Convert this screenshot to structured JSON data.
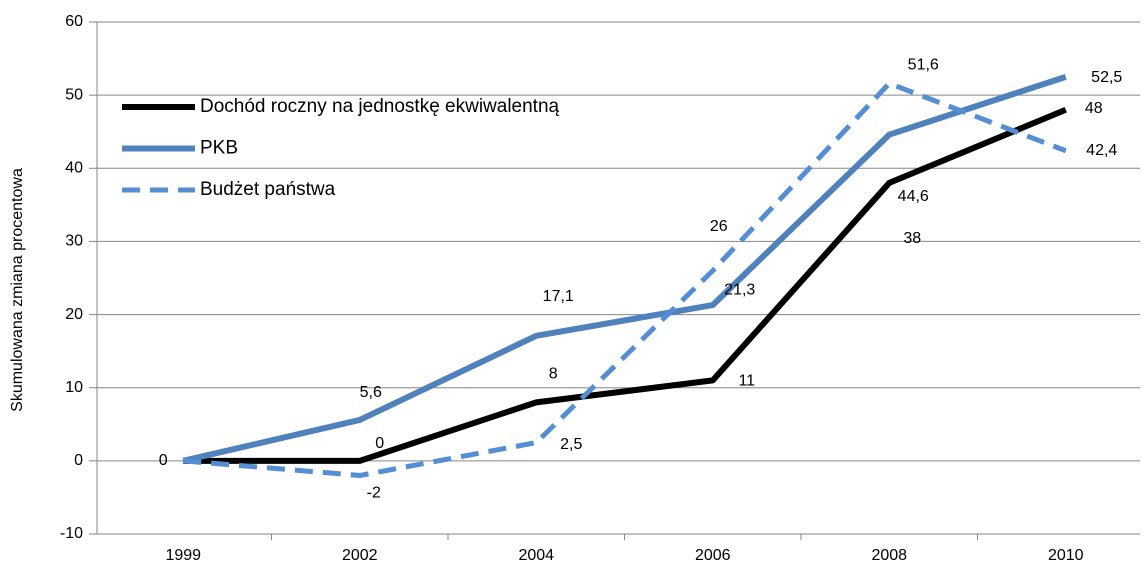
{
  "chart_data": {
    "type": "line",
    "y_label": "Skumulowana zmiana procentowa",
    "categories": [
      "1999",
      "2002",
      "2004",
      "2006",
      "2008",
      "2010"
    ],
    "series": [
      {
        "name": "Dochód roczny na jednostkę ekwiwalentną",
        "color": "#000000",
        "line_style": "solid",
        "values": [
          0,
          0,
          8,
          11,
          38,
          48
        ],
        "value_labels": [
          "0",
          "0",
          "8",
          "11",
          "38",
          "48"
        ]
      },
      {
        "name": "PKB",
        "color": "#4f81bd",
        "line_style": "solid",
        "values": [
          0,
          5.6,
          17.1,
          21.3,
          44.6,
          52.5
        ],
        "value_labels": [
          null,
          "5,6",
          "17,1",
          "21,3",
          "44,6",
          "52,5"
        ]
      },
      {
        "name": "Budżet państwa",
        "color": "#558ed5",
        "line_style": "dashed",
        "values": [
          0,
          -2,
          2.5,
          26,
          51.6,
          42.4
        ],
        "value_labels": [
          null,
          "-2",
          "2,5",
          "26",
          "51,6",
          "42,4"
        ]
      }
    ],
    "ylim": [
      -10,
      60
    ],
    "yticks": [
      -10,
      0,
      10,
      20,
      30,
      40,
      50,
      60
    ],
    "grid": true,
    "legend": "upper left"
  }
}
